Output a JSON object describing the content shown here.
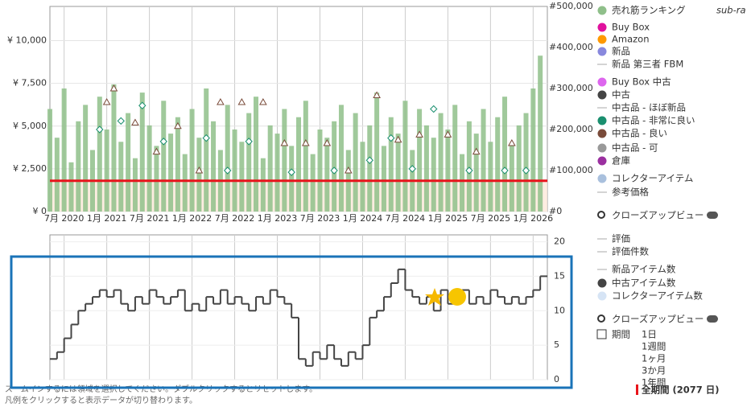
{
  "chart_data": [
    {
      "type": "bar",
      "x": [
        "2020-05",
        "2020-06",
        "2020-07",
        "2020-08",
        "2020-09",
        "2020-10",
        "2020-11",
        "2020-12",
        "2021-01",
        "2021-02",
        "2021-03",
        "2021-04",
        "2021-05",
        "2021-06",
        "2021-07",
        "2021-08",
        "2021-09",
        "2021-10",
        "2021-11",
        "2021-12",
        "2022-01",
        "2022-02",
        "2022-03",
        "2022-04",
        "2022-05",
        "2022-06",
        "2022-07",
        "2022-08",
        "2022-09",
        "2022-10",
        "2022-11",
        "2022-12",
        "2023-01",
        "2023-02",
        "2023-03",
        "2023-04",
        "2023-05",
        "2023-06",
        "2023-07",
        "2023-08",
        "2023-09",
        "2023-10",
        "2023-11",
        "2023-12",
        "2024-01",
        "2024-02",
        "2024-03",
        "2024-04",
        "2024-05",
        "2024-06",
        "2024-07",
        "2024-08",
        "2024-09",
        "2024-10",
        "2024-11",
        "2024-12",
        "2025-01",
        "2025-02",
        "2025-03",
        "2025-04",
        "2025-05",
        "2025-06",
        "2025-07",
        "2025-08",
        "2025-09",
        "2025-10",
        "2025-11",
        "2025-12",
        "2026-01",
        "2026-02"
      ],
      "xlim": [
        "2020-05",
        "2026-03"
      ],
      "xticks": [
        {
          "value": "2020-07",
          "label": "7月 2020"
        },
        {
          "value": "2021-01",
          "label": "1月 2021"
        },
        {
          "value": "2021-07",
          "label": "7月 2021"
        },
        {
          "value": "2022-01",
          "label": "1月 2022"
        },
        {
          "value": "2022-07",
          "label": "7月 2022"
        },
        {
          "value": "2023-01",
          "label": "1月 2023"
        },
        {
          "value": "2023-07",
          "label": "7月 2023"
        },
        {
          "value": "2024-01",
          "label": "1月 2024"
        },
        {
          "value": "2024-07",
          "label": "7月 2024"
        },
        {
          "value": "2025-01",
          "label": "1月 2025"
        },
        {
          "value": "2025-07",
          "label": "7月 2025"
        },
        {
          "value": "2026-01",
          "label": "1月 2026"
        }
      ],
      "ylim": [
        0,
        12000
      ],
      "yticks": [
        {
          "value": 0,
          "label": "¥ 0"
        },
        {
          "value": 2500,
          "label": "¥ 2,500"
        },
        {
          "value": 5000,
          "label": "¥ 5,000"
        },
        {
          "value": 7500,
          "label": "¥ 7,500"
        },
        {
          "value": 10000,
          "label": "¥ 10,000"
        }
      ],
      "y2lim": [
        0,
        500000
      ],
      "y2ticks": [
        {
          "value": 0,
          "label": "#0"
        },
        {
          "value": 100000,
          "label": "#100,000"
        },
        {
          "value": 200000,
          "label": "#200,000"
        },
        {
          "value": 300000,
          "label": "#300,000"
        },
        {
          "value": 400000,
          "label": "#400,000"
        },
        {
          "value": 500000,
          "label": "#500,000"
        }
      ],
      "grid": true,
      "reference_line": {
        "value": 1800,
        "color": "#e8141b"
      },
      "legend_extra": "sub-ra",
      "closeup": "クローズアップビュー",
      "series": [
        {
          "name": "売れ筋ランキング",
          "color": "#8fbf8a",
          "marker": "dot",
          "plot": "bar",
          "axis": "y2",
          "values": [
            250000,
            180000,
            300000,
            120000,
            220000,
            260000,
            150000,
            280000,
            200000,
            310000,
            170000,
            240000,
            130000,
            290000,
            210000,
            160000,
            270000,
            190000,
            230000,
            140000,
            250000,
            180000,
            300000,
            220000,
            150000,
            260000,
            200000,
            170000,
            240000,
            280000,
            130000,
            210000,
            190000,
            250000,
            160000,
            230000,
            270000,
            140000,
            200000,
            180000,
            220000,
            260000,
            150000,
            240000,
            170000,
            210000,
            290000,
            160000,
            230000,
            190000,
            270000,
            150000,
            250000,
            210000,
            180000,
            240000,
            200000,
            260000,
            140000,
            220000,
            190000,
            250000,
            170000,
            230000,
            280000,
            160000,
            210000,
            240000,
            300000,
            380000
          ]
        },
        {
          "name": "Buy Box",
          "color": "#e0119d",
          "marker": "dot"
        },
        {
          "name": "Amazon",
          "color": "#ff9900",
          "marker": "dot"
        },
        {
          "name": "新品",
          "color": "#8888dd",
          "marker": "dot"
        },
        {
          "name": "新品 第三者 FBM",
          "color": "#aaaaaa",
          "marker": "line"
        },
        {
          "name": "Buy Box 中古",
          "color": "#dd66ee",
          "marker": "dot"
        },
        {
          "name": "中古",
          "color": "#444444",
          "marker": "dot"
        },
        {
          "name": "中古品 - ほぼ新品",
          "color": "#aaaaaa",
          "marker": "line"
        },
        {
          "name": "中古品 - 非常に良い",
          "color": "#1a8f6f",
          "marker": "dot",
          "plot": "diamond",
          "x": [
            "2020-12",
            "2021-03",
            "2021-06",
            "2021-09",
            "2022-03",
            "2022-06",
            "2022-09",
            "2023-03",
            "2023-09",
            "2024-02",
            "2024-05",
            "2024-08",
            "2024-11",
            "2025-04",
            "2025-09",
            "2025-12"
          ],
          "values": [
            4800,
            5300,
            6200,
            4100,
            4300,
            2400,
            4100,
            2300,
            2400,
            3000,
            4300,
            2500,
            6000,
            2400,
            2400,
            2400
          ]
        },
        {
          "name": "中古品 - 良い",
          "color": "#7a4b3a",
          "marker": "dot",
          "plot": "triangle",
          "x": [
            "2021-01",
            "2021-02",
            "2021-05",
            "2021-08",
            "2021-11",
            "2022-02",
            "2022-05",
            "2022-08",
            "2022-11",
            "2023-02",
            "2023-05",
            "2023-08",
            "2023-11",
            "2024-03",
            "2024-06",
            "2024-09",
            "2025-01",
            "2025-05",
            "2025-10"
          ],
          "values": [
            6400,
            7200,
            5200,
            3500,
            5000,
            2400,
            6400,
            6400,
            6400,
            4000,
            4000,
            4000,
            2400,
            6800,
            4200,
            4500,
            4500,
            3500,
            4000
          ]
        },
        {
          "name": "中古品 - 可",
          "color": "#999999",
          "marker": "dot"
        },
        {
          "name": "倉庫",
          "color": "#9b30a0",
          "marker": "dot"
        },
        {
          "name": "コレクターアイテム",
          "color": "#a9c0dd",
          "marker": "dot"
        },
        {
          "name": "参考価格",
          "color": "#aaaaaa",
          "marker": "line"
        }
      ]
    },
    {
      "type": "line",
      "ylim": [
        0,
        21
      ],
      "y2ticks": [
        0,
        5,
        10,
        15,
        20
      ],
      "closeup": "クローズアップビュー",
      "series": [
        {
          "name": "評価",
          "color": "#aaaaaa",
          "marker": "line"
        },
        {
          "name": "評価件数",
          "color": "#aaaaaa",
          "marker": "line"
        },
        {
          "name": "新品アイテム数",
          "color": "#aaaaaa",
          "marker": "line"
        },
        {
          "name": "中古アイテム数",
          "color": "#444444",
          "marker": "dot",
          "plot": "step",
          "values": [
            3,
            4,
            6,
            8,
            10,
            11,
            12,
            13,
            12,
            13,
            11,
            10,
            12,
            11,
            13,
            12,
            11,
            12,
            13,
            10,
            11,
            10,
            12,
            11,
            13,
            11,
            12,
            11,
            10,
            12,
            11,
            13,
            12,
            11,
            9,
            3,
            2,
            4,
            3,
            5,
            3,
            2,
            4,
            3,
            5,
            9,
            10,
            12,
            14,
            16,
            13,
            12,
            11,
            12,
            10,
            13,
            11,
            12,
            13,
            11,
            12,
            11,
            13,
            12,
            11,
            12,
            11,
            12,
            13,
            15
          ]
        },
        {
          "name": "コレクターアイテム数",
          "color": "#d6e4f5",
          "marker": "dot"
        }
      ]
    }
  ],
  "period": {
    "label": "期間",
    "options": [
      "1日",
      "1週間",
      "1ヶ月",
      "3か月",
      "1年間"
    ],
    "selected": "全期間 (2077 日)"
  },
  "footer": [
    "ズームインするには領域を選択してください。ダブルクリックするとリセットします。",
    "凡例をクリックすると表示データが切り替わります。"
  ]
}
